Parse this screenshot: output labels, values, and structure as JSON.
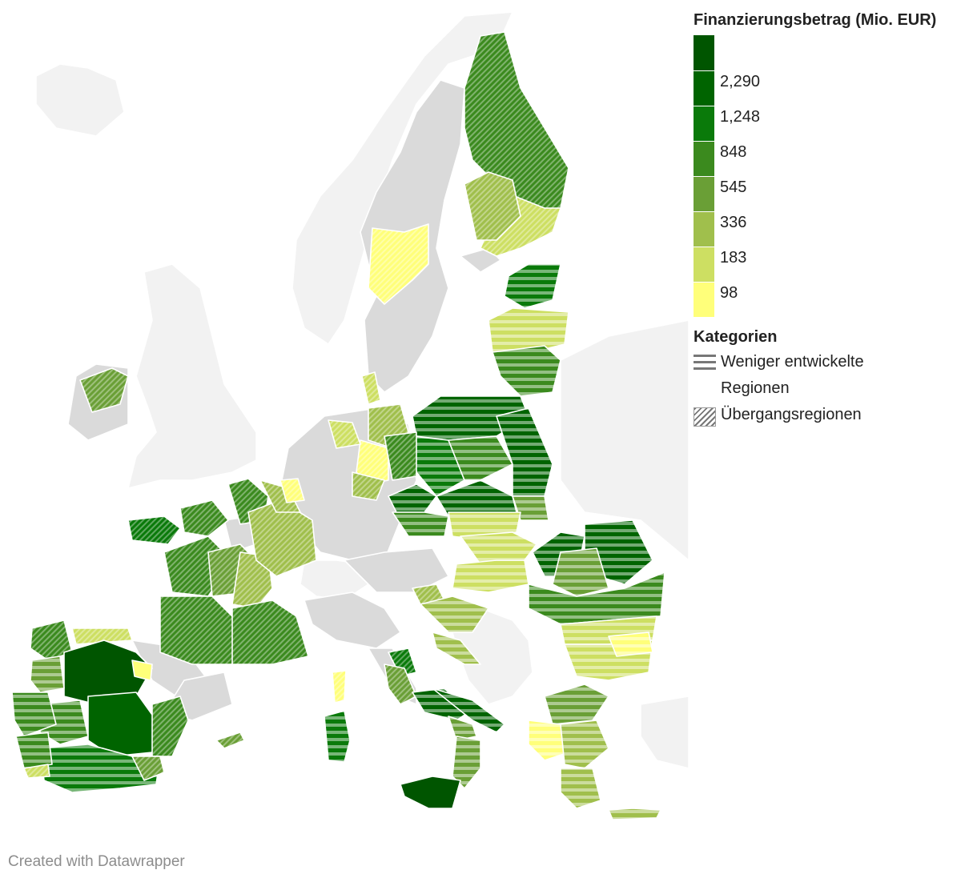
{
  "legend": {
    "title": "Finanzierungsbetrag (Mio. EUR)",
    "scale": [
      {
        "color": "#005500",
        "label": ""
      },
      {
        "color": "#006400",
        "label": "2,290"
      },
      {
        "color": "#0a7a0a",
        "label": "1,248"
      },
      {
        "color": "#3b8a1e",
        "label": "848"
      },
      {
        "color": "#6a9f36",
        "label": "545"
      },
      {
        "color": "#a0bf4c",
        "label": "336"
      },
      {
        "color": "#cddf62",
        "label": "183"
      },
      {
        "color": "#ffff7a",
        "label": "98"
      }
    ],
    "categories_title": "Kategorien",
    "categories": [
      {
        "pattern": "stripes",
        "label_line1": "Weniger entwickelte",
        "label_line2": "Regionen"
      },
      {
        "pattern": "hatch",
        "label_line1": "Übergangsregionen",
        "label_line2": ""
      }
    ]
  },
  "colors": {
    "background_land": "#f2f2f2",
    "eu_no_data": "#dadada",
    "border": "#ffffff"
  },
  "credit": "Created with Datawrapper"
}
